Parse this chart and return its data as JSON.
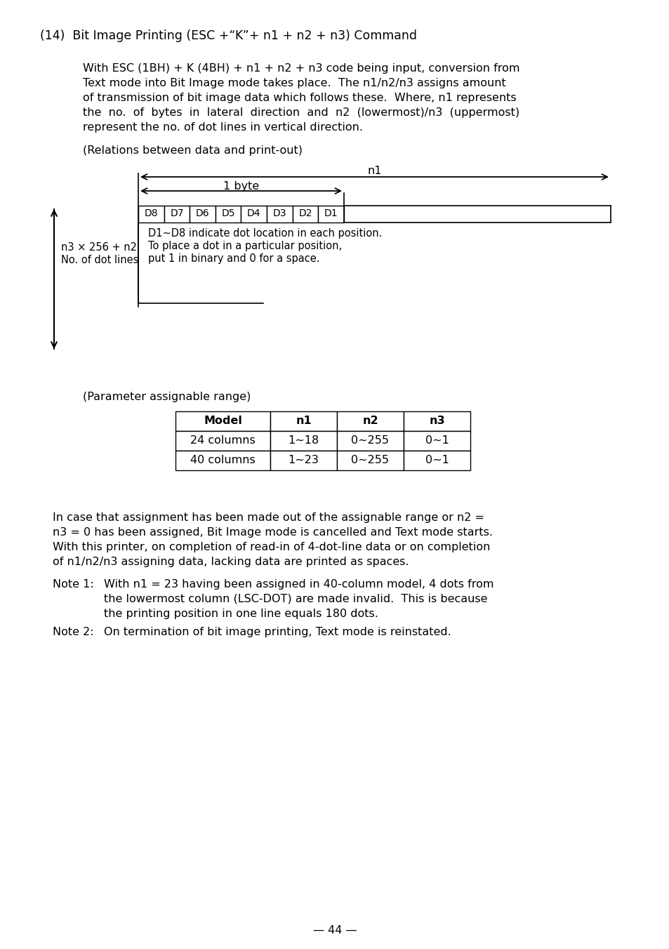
{
  "bg_color": "#ffffff",
  "title_line": "(14)  Bit Image Printing (ESC +“K”+ n1 + n2 + n3) Command",
  "para1_lines": [
    "With ESC (1BH) + K (4BH) + n1 + n2 + n3 code being input, conversion from",
    "Text mode into Bit Image mode takes place.  The n1/n2/n3 assigns amount",
    "of transmission of bit image data which follows these.  Where, n1 represents",
    "the  no.  of  bytes  in  lateral  direction  and  n2  (lowermost)/n3  (uppermost)",
    "represent the no. of dot lines in vertical direction."
  ],
  "relations_label": "(Relations between data and print-out)",
  "n1_label": "n1",
  "byte_label": "1 byte",
  "bit_cells": [
    "D8",
    "D7",
    "D6",
    "D5",
    "D4",
    "D3",
    "D2",
    "D1"
  ],
  "left_label_line1": "n3 × 256 + n2",
  "left_label_line2": "No. of dot lines",
  "right_text_line1": "D1~D8 indicate dot location in each position.",
  "right_text_line2": "To place a dot in a particular position,",
  "right_text_line3": "put 1 in binary and 0 for a space.",
  "param_label": "(Parameter assignable range)",
  "table_headers": [
    "Model",
    "n1",
    "n2",
    "n3"
  ],
  "table_rows": [
    [
      "24 columns",
      "1~18",
      "0~255",
      "0~1"
    ],
    [
      "40 columns",
      "1~23",
      "0~255",
      "0~1"
    ]
  ],
  "para2_lines": [
    "In case that assignment has been made out of the assignable range or n2 =",
    "n3 = 0 has been assigned, Bit Image mode is cancelled and Text mode starts.",
    "With this printer, on completion of read-in of 4-dot-line data or on completion",
    "of n1/n2/n3 assigning data, lacking data are printed as spaces."
  ],
  "note1_label": "Note 1: ",
  "note1_lines": [
    "With n1 = 23 having been assigned in 40-column model, 4 dots from",
    "the lowermost column (LSC-DOT) are made invalid.  This is because",
    "the printing position in one line equals 180 dots."
  ],
  "note2_label": "Note 2: ",
  "note2_text": "On termination of bit image printing, Text mode is reinstated.",
  "footer": "— 44 —"
}
